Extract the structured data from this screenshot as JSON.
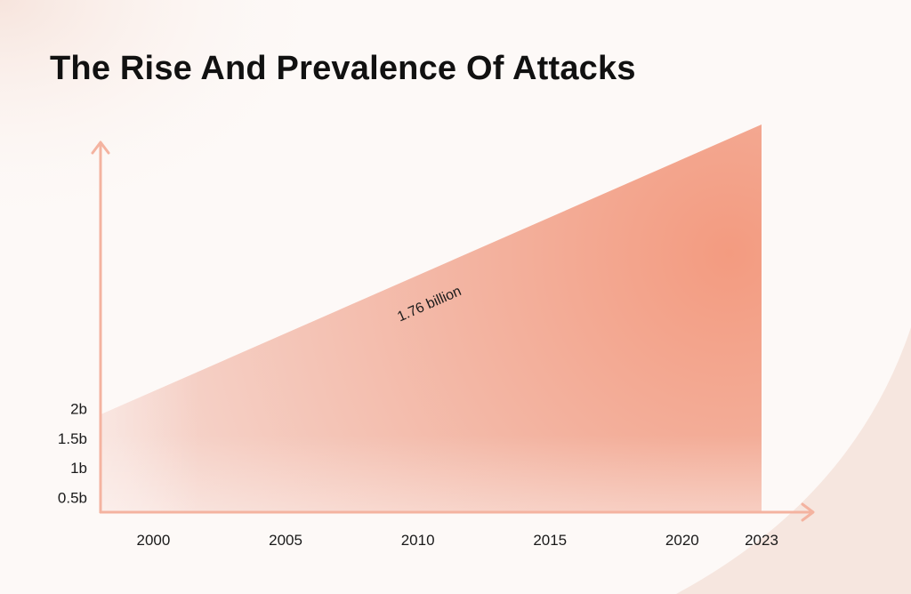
{
  "title": "The Rise And Prevalence Of Attacks",
  "colors": {
    "accent": "#f2a08a",
    "axis": "#f4b3a0",
    "background": "#fdf9f7",
    "text": "#111111"
  },
  "chart_data": {
    "type": "area",
    "x": [
      2000,
      2005,
      2010,
      2015,
      2020,
      2023
    ],
    "x_tick_labels": [
      "2000",
      "2005",
      "2010",
      "2015",
      "2020",
      "2023"
    ],
    "y_tick_labels": [
      "0.5b",
      "1b",
      "1.5b",
      "2b"
    ],
    "y_tick_values": [
      0.5,
      1,
      1.5,
      2
    ],
    "series": [
      {
        "x": [
          1998,
          2023
        ],
        "values": [
          1.9,
          6.8
        ]
      }
    ],
    "annotations": [
      {
        "text": "1.76 billion",
        "x": 2010.5,
        "y": 3.7
      }
    ],
    "xlabel": "",
    "ylabel": "",
    "xlim": [
      1998,
      2023
    ],
    "ylim": [
      0.25,
      6.8
    ],
    "grid": false,
    "legend": "none"
  }
}
